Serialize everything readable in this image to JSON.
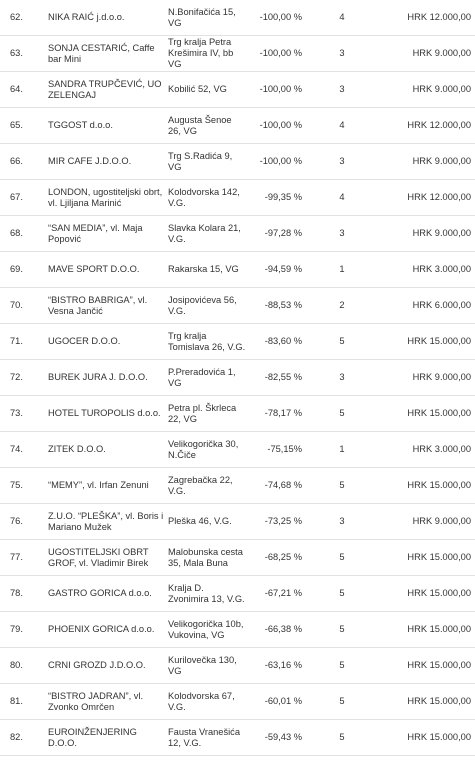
{
  "table": {
    "rows": [
      [
        "62.",
        "NIKA RAIĆ j.d.o.o.",
        "N.Bonifačića 15, VG",
        "-100,00 %",
        "4",
        "HRK 12.000,00"
      ],
      [
        "63.",
        "SONJA CESTARIĆ, Caffe bar Mini",
        "Trg kralja Petra Krešimira IV, bb VG",
        "-100,00 %",
        "3",
        "HRK 9.000,00"
      ],
      [
        "64.",
        "SANDRA TRUPČEVIĆ, UO ZELENGAJ",
        "Kobilić 52, VG",
        "-100,00 %",
        "3",
        "HRK 9.000,00"
      ],
      [
        "65.",
        "TGGOST d.o.o.",
        "Augusta Šenoe 26, VG",
        "-100,00 %",
        "4",
        "HRK 12.000,00"
      ],
      [
        "66.",
        "MIR CAFE J.D.O.O.",
        "Trg S.Radića 9, VG",
        "-100,00 %",
        "3",
        "HRK 9.000,00"
      ],
      [
        "67.",
        "LONDON, ugostiteljski obrt, vl. Ljiljana Marinić",
        "Kolodvorska 142, V.G.",
        "-99,35 %",
        "4",
        "HRK 12.000,00"
      ],
      [
        "68.",
        "“SAN MEDIA”, vl. Maja Popović",
        "Slavka Kolara 21, V.G.",
        "-97,28 %",
        "3",
        "HRK 9.000,00"
      ],
      [
        "69.",
        "MAVE SPORT D.O.O.",
        "Rakarska 15, VG",
        "-94,59 %",
        "1",
        "HRK 3.000,00"
      ],
      [
        "70.",
        "“BISTRO BABRIGA”, vl. Vesna Jančić",
        "Josipovićeva 56, V.G.",
        "-88,53 %",
        "2",
        "HRK 6.000,00"
      ],
      [
        "71.",
        "UGOCER D.O.O.",
        "Trg kralja Tomislava 26, V.G.",
        "-83,60 %",
        "5",
        "HRK 15.000,00"
      ],
      [
        "72.",
        "BUREK JURA J. D.O.O.",
        "P.Preradovića 1, VG",
        "-82,55 %",
        "3",
        "HRK 9.000,00"
      ],
      [
        "73.",
        "HOTEL TUROPOLIS d.o.o.",
        "Petra pl. Škrleca 22, VG",
        "-78,17 %",
        "5",
        "HRK 15.000,00"
      ],
      [
        "74.",
        "ZITEK D.O.O.",
        "Velikogorička 30, N.Čiče",
        "-75,15%",
        "1",
        "HRK 3.000,00"
      ],
      [
        "75.",
        "“MEMY”, vl. Irfan Zenuni",
        "Zagrebačka 22, V.G.",
        "-74,68 %",
        "5",
        "HRK 15.000,00"
      ],
      [
        "76.",
        "Z.U.O. “PLEŠKA”, vl. Boris i Mariano Mužek",
        "Pleška 46, V.G.",
        "-73,25 %",
        "3",
        "HRK 9.000,00"
      ],
      [
        "77.",
        "UGOSTITELJSKI OBRT GROF, vl. Vladimir Birek",
        "Malobunska cesta 35, Mala Buna",
        "-68,25 %",
        "5",
        "HRK 15.000,00"
      ],
      [
        "78.",
        "GASTRO GORICA d.o.o.",
        "Kralja D. Zvonimira 13, V.G.",
        "-67,21 %",
        "5",
        "HRK 15.000,00"
      ],
      [
        "79.",
        "PHOENIX GORICA d.o.o.",
        "Velikogorička 10b, Vukovina, VG",
        "-66,38 %",
        "5",
        "HRK 15.000,00"
      ],
      [
        "80.",
        "CRNI GROZD J.D.O.O.",
        "Kurilovečka 130, VG",
        "-63,16 %",
        "5",
        "HRK 15.000,00"
      ],
      [
        "81.",
        "“BISTRO JADRAN”, vl. Zvonko Omrčen",
        "Kolodvorska 67, V.G.",
        "-60,01 %",
        "5",
        "HRK 15.000,00"
      ],
      [
        "82.",
        "EUROINŽENJERING D.O.O.",
        "Fausta Vranešića 12, V.G.",
        "-59,43 %",
        "5",
        "HRK 15.000,00"
      ]
    ]
  }
}
